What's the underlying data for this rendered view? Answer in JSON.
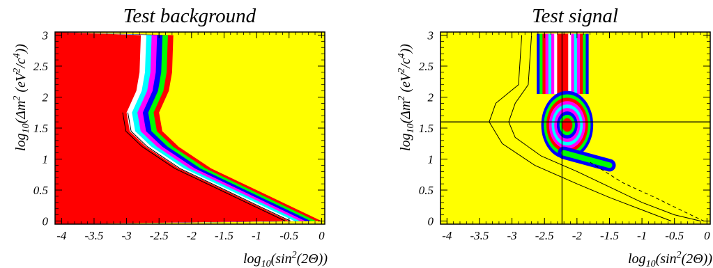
{
  "chart_data": [
    {
      "type": "heatmap",
      "title": "Test background",
      "xlabel": "log10(sin2(2Θ))",
      "ylabel": "log10(Δm2 (eV2/c4))",
      "xlim": [
        -4.1,
        0.05
      ],
      "ylim": [
        -0.05,
        3.05
      ],
      "x_ticks": [
        -4,
        -3.5,
        -3,
        -2.5,
        -2,
        -1.5,
        -1,
        -0.5,
        0
      ],
      "x_tick_labels": [
        "-4",
        "-3.5",
        "-3",
        "-2.5",
        "-2",
        "-1.5",
        "-1",
        "-0.5",
        "0"
      ],
      "y_ticks": [
        0,
        0.5,
        1,
        1.5,
        2,
        2.5,
        3
      ],
      "y_tick_labels": [
        "0",
        "0.5",
        "1",
        "1.5",
        "2",
        "2.5",
        "3"
      ],
      "colors": [
        "#ff0000",
        "#00ff00",
        "#0000ff",
        "#ff00ff",
        "#00ffff",
        "#ffffff",
        "#ffff00"
      ],
      "boundary": [
        {
          "x": -2.78,
          "y": 3.0
        },
        {
          "x": -2.8,
          "y": 2.4
        },
        {
          "x": -2.85,
          "y": 2.1
        },
        {
          "x": -3.0,
          "y": 1.75
        },
        {
          "x": -2.95,
          "y": 1.45
        },
        {
          "x": -2.7,
          "y": 1.2
        },
        {
          "x": -2.2,
          "y": 0.85
        },
        {
          "x": -1.5,
          "y": 0.5
        },
        {
          "x": -1.0,
          "y": 0.25
        },
        {
          "x": -0.5,
          "y": 0.0
        }
      ],
      "band_width": 0.5,
      "contour_lines": [
        {
          "style": "solid",
          "offset": 0.05,
          "y_min": 0.0,
          "y_max": 1.5
        }
      ],
      "crosshair": null
    },
    {
      "type": "heatmap",
      "title": "Test signal",
      "xlabel": "log10(sin2(2Θ))",
      "ylabel": "log10(Δm2 (eV2/c4))",
      "xlim": [
        -4.1,
        0.05
      ],
      "ylim": [
        -0.05,
        3.05
      ],
      "x_ticks": [
        -4,
        -3.5,
        -3,
        -2.5,
        -2,
        -1.5,
        -1,
        -0.5,
        0
      ],
      "x_tick_labels": [
        "-4",
        "-3.5",
        "-3",
        "-2.5",
        "-2",
        "-1.5",
        "-1",
        "-0.5",
        "0"
      ],
      "y_ticks": [
        0,
        0.5,
        1,
        1.5,
        2,
        2.5,
        3
      ],
      "y_tick_labels": [
        "0",
        "0.5",
        "1",
        "1.5",
        "2",
        "2.5",
        "3"
      ],
      "colors": [
        "#ff0000",
        "#00ff00",
        "#0000ff",
        "#ff00ff",
        "#00ffff",
        "#ffffff",
        "#ffff00"
      ],
      "signal_stripe": {
        "x_left": -2.62,
        "x_right": -1.82,
        "y_bottom": 2.05,
        "y_top": 3.0
      },
      "signal_blob": {
        "cx": -2.15,
        "cy": 1.55,
        "rx": 0.4,
        "ry": 0.55
      },
      "signal_tail": [
        {
          "x": -2.2,
          "y": 1.1
        },
        {
          "x": -1.85,
          "y": 1.0
        },
        {
          "x": -1.5,
          "y": 0.9
        }
      ],
      "contour_lines": [
        {
          "style": "solid",
          "points": [
            [
              -2.7,
              3.0
            ],
            [
              -2.75,
              2.2
            ],
            [
              -2.95,
              1.9
            ],
            [
              -3.05,
              1.6
            ],
            [
              -2.95,
              1.35
            ],
            [
              -2.55,
              1.05
            ],
            [
              -2.0,
              0.8
            ],
            [
              -1.5,
              0.55
            ],
            [
              -1.0,
              0.3
            ],
            [
              -0.5,
              0.1
            ],
            [
              -0.1,
              0.0
            ]
          ]
        },
        {
          "style": "solid",
          "points": [
            [
              -2.85,
              3.0
            ],
            [
              -2.9,
              2.2
            ],
            [
              -3.25,
              1.9
            ],
            [
              -3.35,
              1.6
            ],
            [
              -3.15,
              1.25
            ],
            [
              -2.65,
              0.9
            ],
            [
              -2.0,
              0.6
            ],
            [
              -1.5,
              0.38
            ],
            [
              -1.0,
              0.18
            ],
            [
              -0.55,
              0.0
            ]
          ]
        },
        {
          "style": "dashed",
          "points": [
            [
              -1.8,
              0.95
            ],
            [
              -1.3,
              0.62
            ],
            [
              -0.8,
              0.38
            ],
            [
              -0.35,
              0.15
            ],
            [
              -0.05,
              0.0
            ]
          ]
        }
      ],
      "crosshair": {
        "x": -2.23,
        "y": 1.6
      }
    }
  ]
}
